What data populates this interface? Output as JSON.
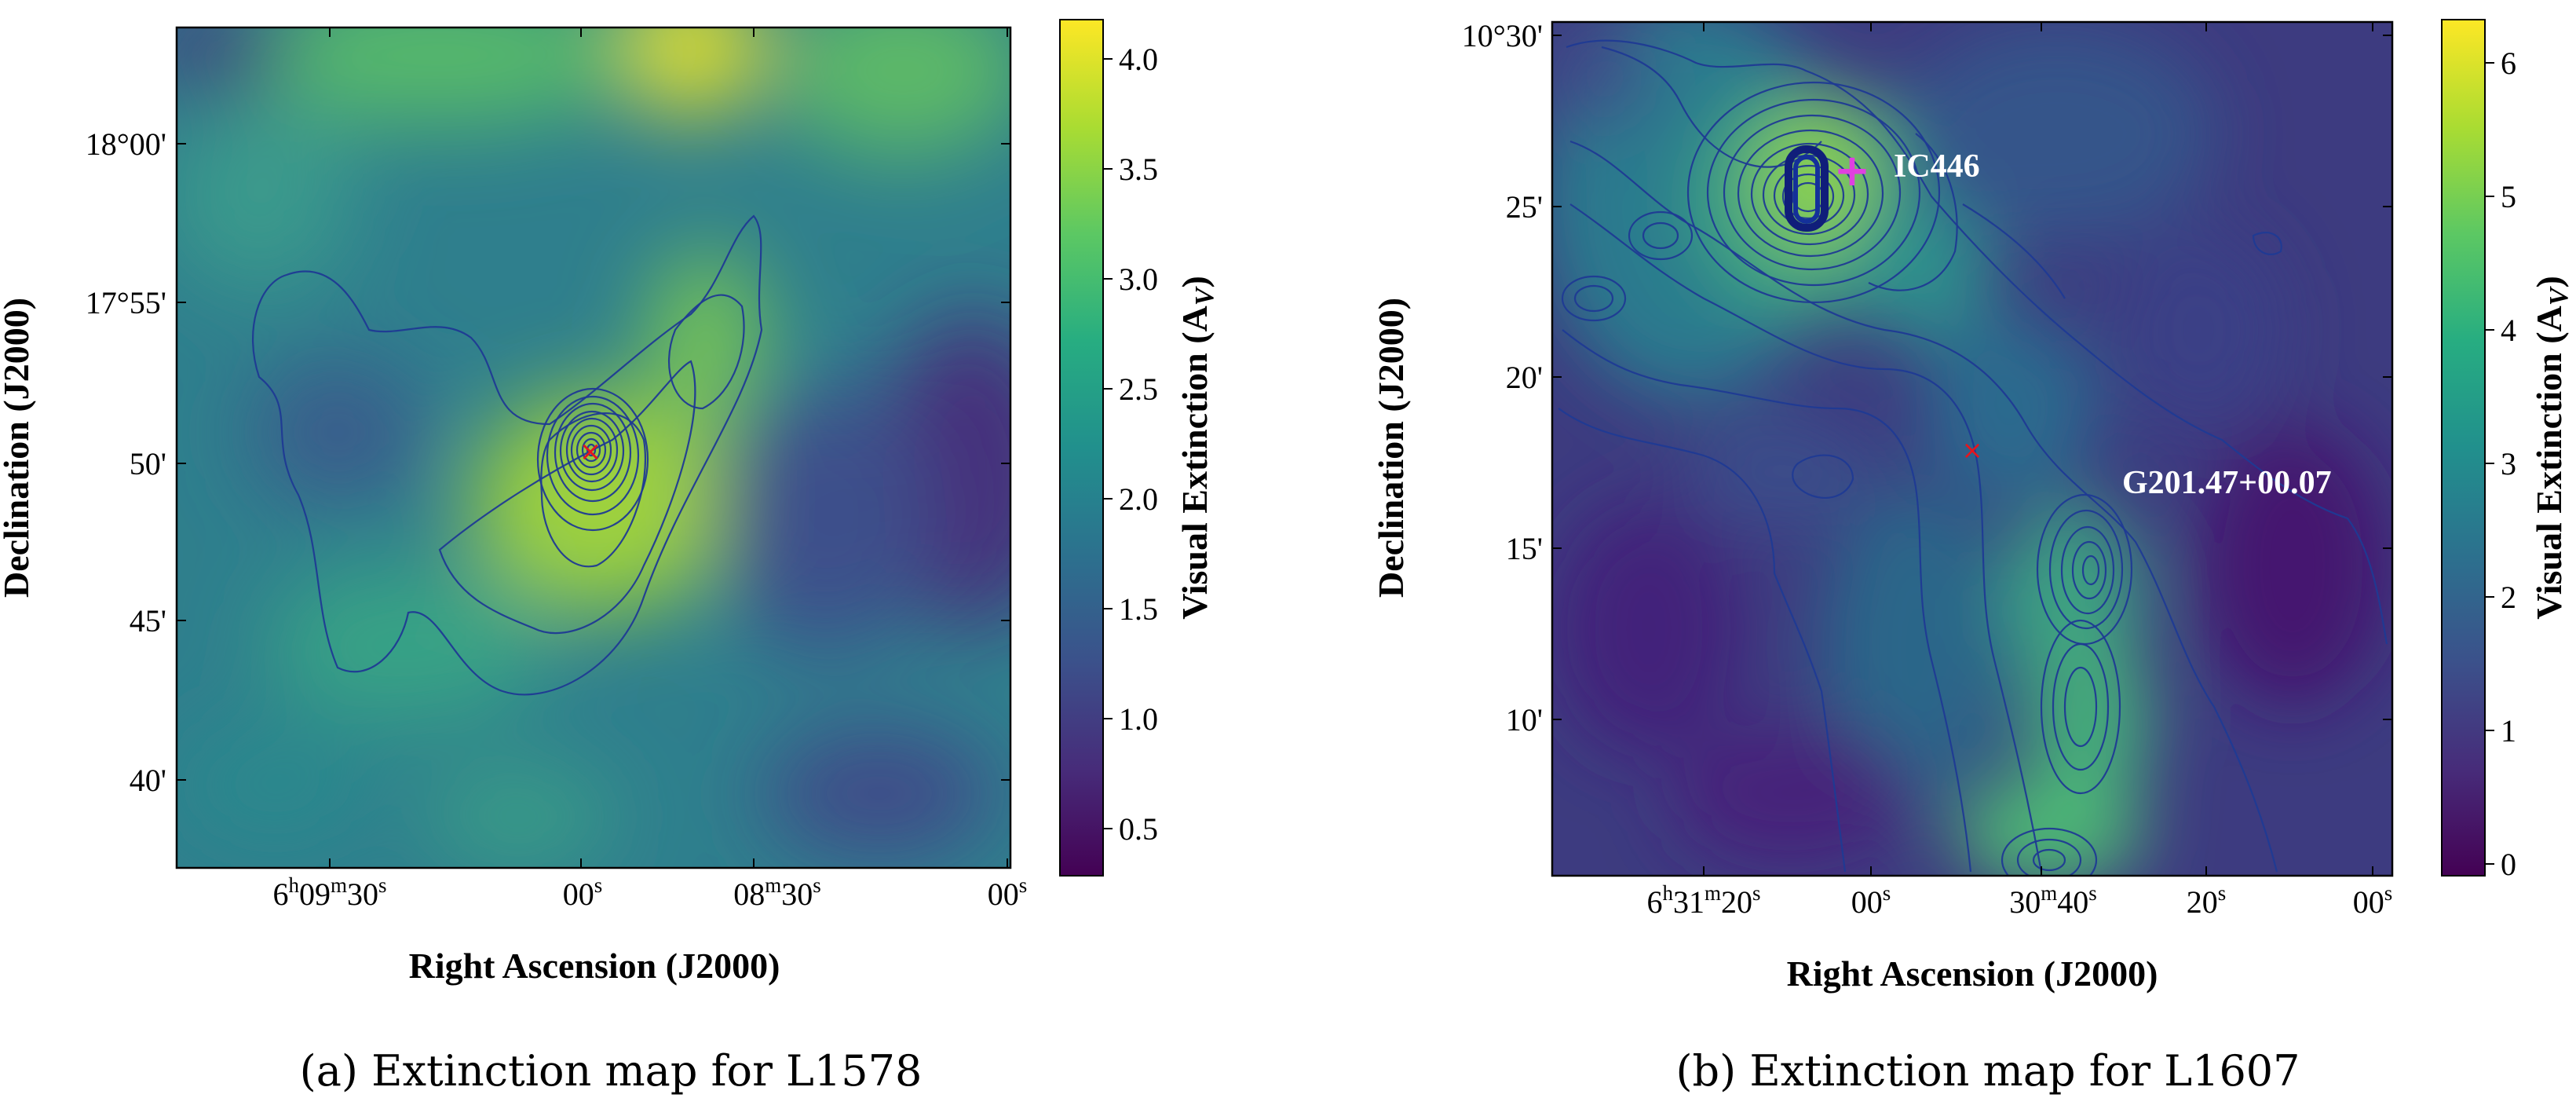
{
  "chart_data": [
    {
      "type": "heatmap",
      "colormap": "viridis",
      "overlay": "contours",
      "xlabel": "Right Ascension (J2000)",
      "ylabel": "Declination (J2000)",
      "x_ticks": [
        {
          "h": "6",
          "hs": "h",
          "m": "09",
          "ms": "m",
          "s": "30",
          "ss": "s"
        },
        {
          "s": "00",
          "ss": "s"
        },
        {
          "m": "08",
          "ms": "m",
          "s": "30",
          "ss": "s"
        },
        {
          "s": "00",
          "ss": "s"
        }
      ],
      "y_ticks": [
        "18°00'",
        "17°55'",
        "50'",
        "45'",
        "40'"
      ],
      "colorbar": {
        "label_main": "Visual Extinction (A",
        "label_sub": "V",
        "label_end": ")",
        "ticks": [
          "0.5",
          "1.0",
          "1.5",
          "2.0",
          "2.5",
          "3.0",
          "3.5",
          "4.0"
        ],
        "range": [
          0.3,
          4.2
        ]
      },
      "markers": [
        {
          "symbol": "×",
          "color": "#e8141c"
        }
      ],
      "caption": "(a) Extinction map for L1578"
    },
    {
      "type": "heatmap",
      "colormap": "viridis",
      "overlay": "contours",
      "xlabel": "Right Ascension (J2000)",
      "ylabel": "Declination (J2000)",
      "x_ticks": [
        {
          "h": "6",
          "hs": "h",
          "m": "31",
          "ms": "m",
          "s": "20",
          "ss": "s"
        },
        {
          "s": "00",
          "ss": "s"
        },
        {
          "m": "30",
          "ms": "m",
          "s": "40",
          "ss": "s"
        },
        {
          "s": "20",
          "ss": "s"
        },
        {
          "s": "00",
          "ss": "s"
        }
      ],
      "y_ticks": [
        "10°30'",
        "25'",
        "20'",
        "15'",
        "10'"
      ],
      "colorbar": {
        "label_main": "Visual Extinction (A",
        "label_sub": "V",
        "label_end": ")",
        "ticks": [
          "0",
          "1",
          "2",
          "3",
          "4",
          "5",
          "6"
        ],
        "range": [
          -0.1,
          6.3
        ]
      },
      "markers": [
        {
          "symbol": "+",
          "color": "#e040e0"
        },
        {
          "symbol": "×",
          "color": "#e8141c"
        }
      ],
      "annotations": [
        "IC446",
        "G201.47+00.07"
      ],
      "caption": "(b) Extinction map for L1607"
    }
  ],
  "colors": {
    "viridis": [
      "#440154",
      "#472c7a",
      "#3b518b",
      "#2c718e",
      "#21908d",
      "#27ad81",
      "#5cc863",
      "#aadc32",
      "#fde725"
    ],
    "contour": "#1f3a93"
  }
}
